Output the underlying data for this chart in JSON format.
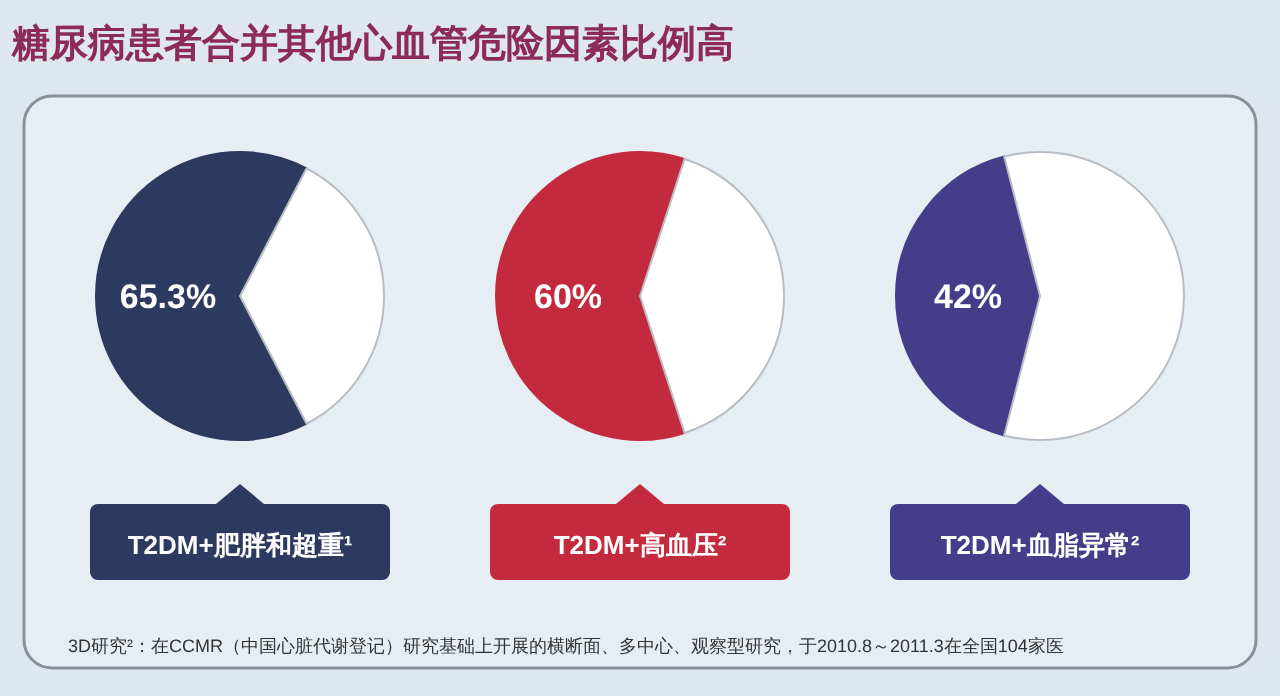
{
  "chart_data": [
    {
      "type": "pie",
      "title": "糖尿病患者合并其他心血管危险因素比例高",
      "xlabel": "T2DM+肥胖和超重¹",
      "categories": [
        null,
        null
      ],
      "values": [
        65.3,
        34.7
      ],
      "colors": [
        "#2b3a5e",
        "#ffffff"
      ],
      "value_labels": [
        "65.3%",
        null
      ],
      "annotations": [
        "3D研究²：在CCMR（中国心脏代谢登记）研究基础上开展的横断面、多中心、观察型研究，于2010.8～2011.3在全国104家医"
      ]
    },
    {
      "type": "pie",
      "xlabel": "T2DM+高血压²",
      "categories": [
        null,
        null
      ],
      "values": [
        60,
        40
      ],
      "colors": [
        "#c42a3e",
        "#ffffff"
      ],
      "value_labels": [
        "60%",
        null
      ]
    },
    {
      "type": "pie",
      "xlabel": "T2DM+血脂异常²",
      "categories": [
        null,
        null
      ],
      "values": [
        42,
        58
      ],
      "colors": [
        "#463d8a",
        "#ffffff"
      ],
      "value_labels": [
        "42%",
        null
      ]
    }
  ]
}
